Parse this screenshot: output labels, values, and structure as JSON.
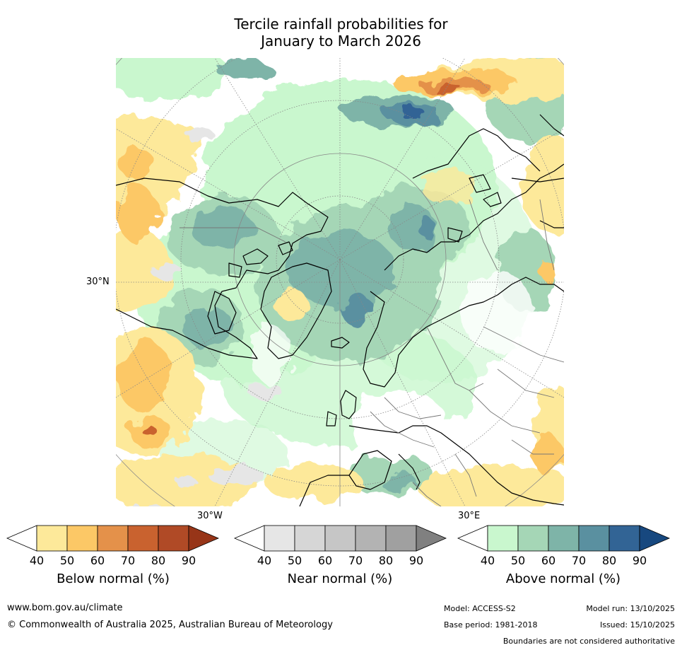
{
  "title": {
    "line1": "Tercile rainfall probabilities for",
    "line2": "January to March 2026"
  },
  "map": {
    "labels": {
      "lat_30n": "30°N",
      "lon_30w": "30°W",
      "lon_30e": "30°E"
    }
  },
  "legends": [
    {
      "title": "Below normal (%)",
      "ticks": [
        "40",
        "50",
        "60",
        "70",
        "80",
        "90"
      ],
      "colors": [
        "#fde99a",
        "#fcc866",
        "#e4914a",
        "#c9622f",
        "#b04a26",
        "#973518"
      ]
    },
    {
      "title": "Near normal (%)",
      "ticks": [
        "40",
        "50",
        "60",
        "70",
        "80",
        "90"
      ],
      "colors": [
        "#e6e6e6",
        "#d6d6d6",
        "#c6c6c6",
        "#b3b3b3",
        "#a0a0a0",
        "#808080"
      ]
    },
    {
      "title": "Above normal (%)",
      "ticks": [
        "40",
        "50",
        "60",
        "70",
        "80",
        "90"
      ],
      "colors": [
        "#c9f7ce",
        "#a5d6b6",
        "#7eb4a8",
        "#5a90a0",
        "#326495",
        "#17487f"
      ]
    }
  ],
  "footer": {
    "website": "www.bom.gov.au/climate",
    "copyright": "© Commonwealth of Australia 2025, Australian Bureau of Meteorology",
    "model": "Model: ACCESS-S2",
    "model_run": "Model run: 13/10/2025",
    "base_period": "Base period: 1981-2018",
    "issued": "Issued: 15/10/2025",
    "disclaimer": "Boundaries are not considered authoritative"
  }
}
